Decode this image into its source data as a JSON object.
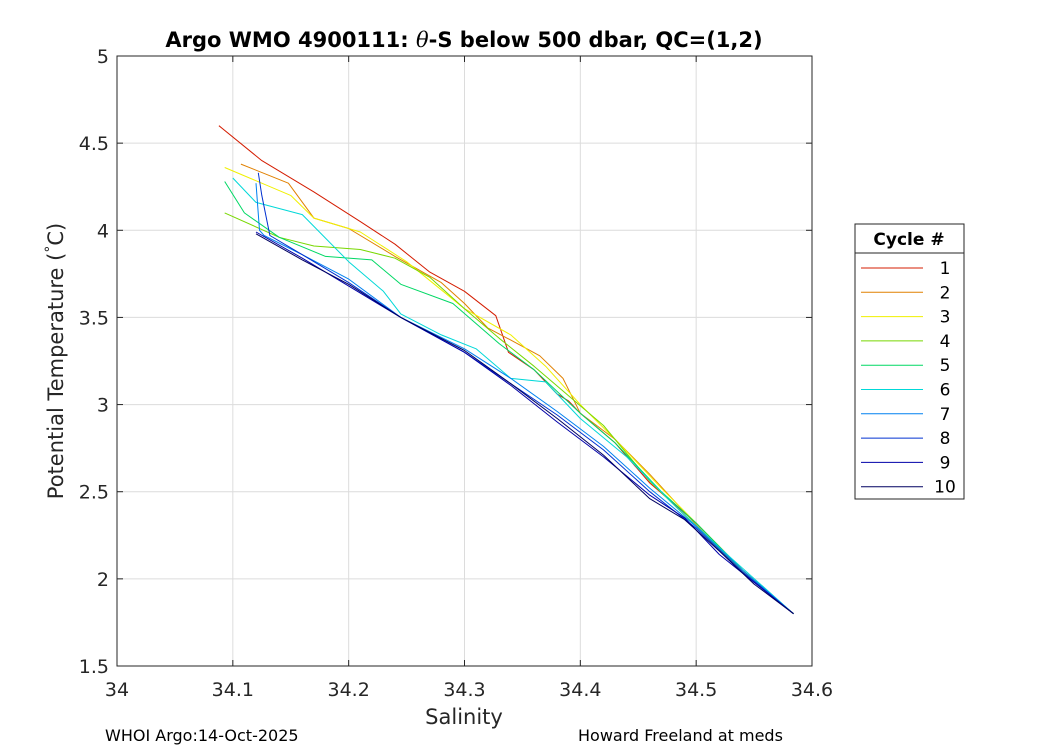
{
  "chart_data": {
    "type": "line",
    "title_main": "Argo WMO 4900111: ",
    "title_symbol": "θ",
    "title_rest": "-S below 500 dbar,  QC=(1,2)",
    "xlabel": "Salinity",
    "ylabel_pre": "Potential Temperature (",
    "ylabel_deg": "°",
    "ylabel_post": "C)",
    "xlim": [
      34.0,
      34.6
    ],
    "ylim": [
      1.5,
      5.0
    ],
    "xticks": [
      34,
      34.1,
      34.2,
      34.3,
      34.4,
      34.5,
      34.6
    ],
    "xtick_labels": [
      "34",
      "34.1",
      "34.2",
      "34.3",
      "34.4",
      "34.5",
      "34.6"
    ],
    "yticks": [
      1.5,
      2,
      2.5,
      3,
      3.5,
      4,
      4.5,
      5
    ],
    "ytick_labels": [
      "1.5",
      "2",
      "2.5",
      "3",
      "3.5",
      "4",
      "4.5",
      "5"
    ],
    "grid": true,
    "legend_title": "Cycle #",
    "legend_position": "outside-right",
    "series": [
      {
        "name": "1",
        "color": "#d41c00",
        "x": [
          34.088,
          34.125,
          34.17,
          34.21,
          34.24,
          34.27,
          34.3,
          34.327,
          34.338,
          34.36,
          34.38,
          34.39,
          34.4,
          34.43,
          34.46,
          34.5,
          34.54,
          34.584
        ],
        "y": [
          4.6,
          4.4,
          4.22,
          4.05,
          3.92,
          3.76,
          3.65,
          3.51,
          3.3,
          3.2,
          3.06,
          3.02,
          2.95,
          2.78,
          2.55,
          2.32,
          2.05,
          1.8
        ]
      },
      {
        "name": "2",
        "color": "#e08000",
        "x": [
          34.107,
          34.148,
          34.17,
          34.2,
          34.24,
          34.28,
          34.3,
          34.32,
          34.34,
          34.365,
          34.385,
          34.4,
          34.43,
          34.46,
          34.5,
          34.54,
          34.584
        ],
        "y": [
          4.38,
          4.27,
          4.07,
          4.01,
          3.85,
          3.7,
          3.58,
          3.44,
          3.37,
          3.28,
          3.15,
          2.95,
          2.8,
          2.6,
          2.31,
          2.04,
          1.8
        ]
      },
      {
        "name": "3",
        "color": "#f0f000",
        "x": [
          34.093,
          34.15,
          34.17,
          34.21,
          34.25,
          34.3,
          34.34,
          34.37,
          34.4,
          34.43,
          34.47,
          34.5,
          34.54,
          34.584
        ],
        "y": [
          4.36,
          4.2,
          4.07,
          3.99,
          3.82,
          3.55,
          3.4,
          3.22,
          3.0,
          2.8,
          2.52,
          2.32,
          2.05,
          1.8
        ]
      },
      {
        "name": "4",
        "color": "#78d800",
        "x": [
          34.093,
          34.14,
          34.17,
          34.21,
          34.24,
          34.27,
          34.3,
          34.33,
          34.36,
          34.39,
          34.42,
          34.46,
          34.5,
          34.54,
          34.584
        ],
        "y": [
          4.1,
          3.96,
          3.91,
          3.89,
          3.84,
          3.73,
          3.55,
          3.38,
          3.22,
          3.05,
          2.88,
          2.56,
          2.3,
          2.04,
          1.8
        ]
      },
      {
        "name": "5",
        "color": "#00d864",
        "x": [
          34.093,
          34.11,
          34.14,
          34.18,
          34.22,
          34.245,
          34.29,
          34.33,
          34.36,
          34.4,
          34.43,
          34.47,
          34.5,
          34.54,
          34.584
        ],
        "y": [
          4.28,
          4.1,
          3.96,
          3.85,
          3.83,
          3.69,
          3.58,
          3.35,
          3.2,
          2.95,
          2.78,
          2.5,
          2.32,
          2.05,
          1.8
        ]
      },
      {
        "name": "6",
        "color": "#00d8d8",
        "x": [
          34.1,
          34.12,
          34.16,
          34.2,
          34.23,
          34.245,
          34.28,
          34.31,
          34.34,
          34.37,
          34.4,
          34.44,
          34.48,
          34.52,
          34.584
        ],
        "y": [
          4.3,
          4.16,
          4.09,
          3.82,
          3.65,
          3.52,
          3.4,
          3.32,
          3.15,
          3.13,
          2.92,
          2.7,
          2.43,
          2.18,
          1.8
        ]
      },
      {
        "name": "7",
        "color": "#0080f0",
        "x": [
          34.12,
          34.123,
          34.127,
          34.16,
          34.2,
          34.245,
          34.3,
          34.34,
          34.38,
          34.42,
          34.46,
          34.5,
          34.54,
          34.584
        ],
        "y": [
          4.27,
          4.0,
          3.97,
          3.86,
          3.72,
          3.5,
          3.32,
          3.15,
          2.96,
          2.76,
          2.52,
          2.3,
          2.05,
          1.8
        ]
      },
      {
        "name": "8",
        "color": "#0030d0",
        "x": [
          34.122,
          34.125,
          34.132,
          34.16,
          34.2,
          34.245,
          34.3,
          34.34,
          34.38,
          34.42,
          34.46,
          34.5,
          34.54,
          34.584
        ],
        "y": [
          4.33,
          4.2,
          3.97,
          3.86,
          3.7,
          3.5,
          3.3,
          3.12,
          2.94,
          2.74,
          2.5,
          2.29,
          2.04,
          1.8
        ]
      },
      {
        "name": "9",
        "color": "#0000a8",
        "x": [
          34.12,
          34.16,
          34.2,
          34.245,
          34.3,
          34.34,
          34.38,
          34.42,
          34.46,
          34.49,
          34.52,
          34.55,
          34.584
        ],
        "y": [
          3.99,
          3.84,
          3.68,
          3.5,
          3.3,
          3.11,
          2.9,
          2.7,
          2.48,
          2.35,
          2.14,
          1.98,
          1.8
        ]
      },
      {
        "name": "10",
        "color": "#000060",
        "x": [
          34.12,
          34.16,
          34.2,
          34.245,
          34.3,
          34.34,
          34.38,
          34.42,
          34.46,
          34.49,
          34.52,
          34.55,
          34.584
        ],
        "y": [
          3.98,
          3.83,
          3.69,
          3.5,
          3.31,
          3.12,
          2.92,
          2.71,
          2.46,
          2.34,
          2.16,
          1.97,
          1.8
        ]
      }
    ]
  },
  "footer": {
    "left": "WHOI Argo:14-Oct-2025",
    "right": "Howard Freeland at meds"
  }
}
